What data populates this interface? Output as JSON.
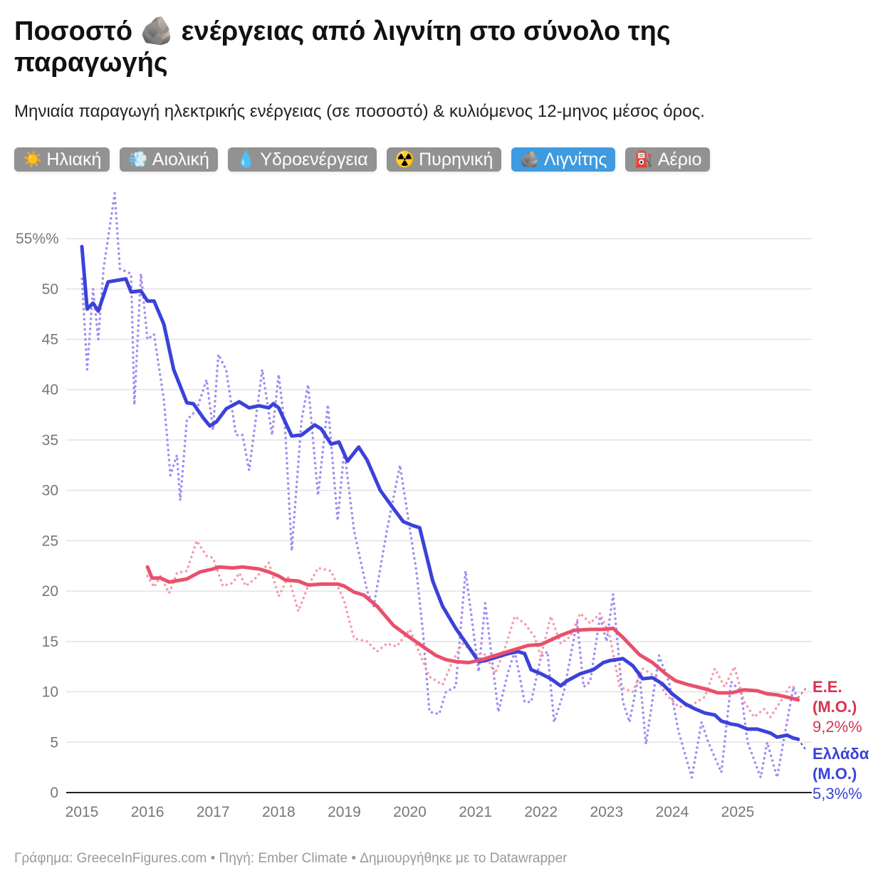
{
  "title": "Ποσοστό 🪨 ενέργειας από λιγνίτη στο σύνολο της παραγωγής",
  "subtitle": "Μηνιαία παραγωγή ηλεκτρικής ενέργειας (σε ποσοστό) & κυλιόμενος 12-μηνος μέσος όρος.",
  "buttons": [
    {
      "icon": "☀️",
      "label": "Ηλιακή",
      "active": false
    },
    {
      "icon": "💨",
      "label": "Αιολική",
      "active": false
    },
    {
      "icon": "💧",
      "label": "Υδροενέργεια",
      "active": false
    },
    {
      "icon": "☢️",
      "label": "Πυρηνική",
      "active": false
    },
    {
      "icon": "🪨",
      "label": "Λιγνίτης",
      "active": true
    },
    {
      "icon": "⛽",
      "label": "Αέριο",
      "active": false
    }
  ],
  "footer": "Γράφημα: GreeceInFigures.com • Πηγή: Ember Climate • Δημιουργήθηκε με το Datawrapper",
  "chart_data": {
    "type": "line",
    "ylim": [
      0,
      55
    ],
    "yticks": [
      0,
      5,
      10,
      15,
      20,
      25,
      30,
      35,
      40,
      45,
      50,
      55
    ],
    "ytick_labels": [
      "0",
      "5",
      "10",
      "15",
      "20",
      "25",
      "30",
      "35",
      "40",
      "45",
      "50",
      "55%%"
    ],
    "xticks": [
      "2015",
      "2016",
      "2017",
      "2018",
      "2019",
      "2020",
      "2021",
      "2022",
      "2023",
      "2024",
      "2025"
    ],
    "grid": true,
    "series": [
      {
        "name": "Ελλάδα (Μ.Ο.)",
        "label_lines": [
          "Ελλάδα",
          "(Μ.Ο.)"
        ],
        "end_label": "5,3%%",
        "color": "#3b42d9",
        "style": "solid",
        "points": [
          [
            2015.0,
            54.2
          ],
          [
            2015.08,
            48
          ],
          [
            2015.17,
            48.6
          ],
          [
            2015.25,
            47.8
          ],
          [
            2015.4,
            50.7
          ],
          [
            2015.67,
            51
          ],
          [
            2015.75,
            49.7
          ],
          [
            2015.9,
            49.8
          ],
          [
            2016.0,
            48.8
          ],
          [
            2016.1,
            48.8
          ],
          [
            2016.25,
            46.5
          ],
          [
            2016.4,
            42
          ],
          [
            2016.6,
            38.7
          ],
          [
            2016.7,
            38.6
          ],
          [
            2016.85,
            37.2
          ],
          [
            2016.95,
            36.4
          ],
          [
            2017.05,
            36.8
          ],
          [
            2017.2,
            38.1
          ],
          [
            2017.4,
            38.8
          ],
          [
            2017.55,
            38.2
          ],
          [
            2017.7,
            38.4
          ],
          [
            2017.85,
            38.2
          ],
          [
            2017.92,
            38.6
          ],
          [
            2018.0,
            38.2
          ],
          [
            2018.2,
            35.4
          ],
          [
            2018.35,
            35.5
          ],
          [
            2018.55,
            36.5
          ],
          [
            2018.65,
            36.1
          ],
          [
            2018.8,
            34.6
          ],
          [
            2018.92,
            34.8
          ],
          [
            2019.05,
            32.9
          ],
          [
            2019.22,
            34.3
          ],
          [
            2019.35,
            33
          ],
          [
            2019.55,
            30
          ],
          [
            2019.75,
            28.2
          ],
          [
            2019.9,
            26.9
          ],
          [
            2020.05,
            26.5
          ],
          [
            2020.15,
            26.3
          ],
          [
            2020.35,
            21
          ],
          [
            2020.5,
            18.5
          ],
          [
            2020.7,
            16.3
          ],
          [
            2020.85,
            14.9
          ],
          [
            2021.05,
            13
          ],
          [
            2021.15,
            13.1
          ],
          [
            2021.3,
            13.4
          ],
          [
            2021.5,
            13.8
          ],
          [
            2021.65,
            14
          ],
          [
            2021.75,
            13.8
          ],
          [
            2021.85,
            12.2
          ],
          [
            2022.0,
            11.8
          ],
          [
            2022.15,
            11.3
          ],
          [
            2022.3,
            10.6
          ],
          [
            2022.4,
            11.1
          ],
          [
            2022.6,
            11.8
          ],
          [
            2022.8,
            12.2
          ],
          [
            2022.95,
            12.9
          ],
          [
            2023.05,
            13.1
          ],
          [
            2023.25,
            13.3
          ],
          [
            2023.4,
            12.6
          ],
          [
            2023.55,
            11.3
          ],
          [
            2023.7,
            11.4
          ],
          [
            2023.85,
            10.8
          ],
          [
            2024.0,
            9.8
          ],
          [
            2024.2,
            8.8
          ],
          [
            2024.35,
            8.3
          ],
          [
            2024.5,
            7.9
          ],
          [
            2024.65,
            7.7
          ],
          [
            2024.75,
            7.1
          ],
          [
            2024.9,
            6.8
          ],
          [
            2025.0,
            6.7
          ],
          [
            2025.15,
            6.3
          ],
          [
            2025.3,
            6.3
          ],
          [
            2025.5,
            5.9
          ],
          [
            2025.6,
            5.5
          ],
          [
            2025.75,
            5.7
          ],
          [
            2025.85,
            5.4
          ],
          [
            2025.92,
            5.3
          ]
        ]
      },
      {
        "name": "Ελλάδα (μηνιαία)",
        "color": "#a08cf2",
        "style": "dotted",
        "points": [
          [
            2015.0,
            51
          ],
          [
            2015.08,
            42
          ],
          [
            2015.17,
            50
          ],
          [
            2015.25,
            45
          ],
          [
            2015.33,
            52
          ],
          [
            2015.5,
            59.5
          ],
          [
            2015.58,
            52
          ],
          [
            2015.75,
            51.5
          ],
          [
            2015.8,
            38.5
          ],
          [
            2015.9,
            51.5
          ],
          [
            2016.0,
            45
          ],
          [
            2016.1,
            45.5
          ],
          [
            2016.25,
            39
          ],
          [
            2016.35,
            31.5
          ],
          [
            2016.45,
            33.5
          ],
          [
            2016.5,
            29
          ],
          [
            2016.6,
            37
          ],
          [
            2016.75,
            38
          ],
          [
            2016.9,
            41
          ],
          [
            2017.0,
            36
          ],
          [
            2017.08,
            43.5
          ],
          [
            2017.2,
            42
          ],
          [
            2017.35,
            35.5
          ],
          [
            2017.45,
            35.5
          ],
          [
            2017.55,
            32
          ],
          [
            2017.75,
            42
          ],
          [
            2017.9,
            35.5
          ],
          [
            2018.0,
            41.5
          ],
          [
            2018.1,
            36
          ],
          [
            2018.2,
            24
          ],
          [
            2018.35,
            37
          ],
          [
            2018.45,
            40.5
          ],
          [
            2018.6,
            29.5
          ],
          [
            2018.75,
            38.5
          ],
          [
            2018.9,
            27
          ],
          [
            2019.0,
            34
          ],
          [
            2019.15,
            26
          ],
          [
            2019.35,
            20
          ],
          [
            2019.45,
            18.5
          ],
          [
            2019.65,
            26
          ],
          [
            2019.85,
            32.5
          ],
          [
            2020.1,
            22
          ],
          [
            2020.2,
            16
          ],
          [
            2020.3,
            8
          ],
          [
            2020.45,
            7.8
          ],
          [
            2020.55,
            10
          ],
          [
            2020.7,
            10.5
          ],
          [
            2020.85,
            22
          ],
          [
            2021.05,
            12
          ],
          [
            2021.15,
            18.8
          ],
          [
            2021.35,
            8
          ],
          [
            2021.5,
            12
          ],
          [
            2021.6,
            14
          ],
          [
            2021.75,
            9
          ],
          [
            2021.85,
            9
          ],
          [
            2022.0,
            13.5
          ],
          [
            2022.1,
            14
          ],
          [
            2022.2,
            7
          ],
          [
            2022.35,
            10
          ],
          [
            2022.55,
            17
          ],
          [
            2022.65,
            10.5
          ],
          [
            2022.75,
            11
          ],
          [
            2022.9,
            17.5
          ],
          [
            2023.0,
            15
          ],
          [
            2023.1,
            19.7
          ],
          [
            2023.25,
            9
          ],
          [
            2023.35,
            7
          ],
          [
            2023.5,
            12
          ],
          [
            2023.6,
            4.8
          ],
          [
            2023.8,
            13.6
          ],
          [
            2023.95,
            11
          ],
          [
            2024.1,
            6
          ],
          [
            2024.3,
            1.5
          ],
          [
            2024.45,
            7
          ],
          [
            2024.55,
            5
          ],
          [
            2024.75,
            2
          ],
          [
            2024.9,
            11
          ],
          [
            2025.05,
            10
          ],
          [
            2025.15,
            5
          ],
          [
            2025.35,
            1.5
          ],
          [
            2025.45,
            5
          ],
          [
            2025.6,
            1.5
          ],
          [
            2025.75,
            7
          ],
          [
            2025.85,
            10.5
          ],
          [
            2025.92,
            9
          ]
        ]
      },
      {
        "name": "Ε.Ε. (Μ.Ο.)",
        "label_lines": [
          "Ε.Ε.",
          "(Μ.Ο.)"
        ],
        "end_label": "9,2%%",
        "color": "#e9506b",
        "style": "solid",
        "points": [
          [
            2016.0,
            22.4
          ],
          [
            2016.07,
            21.3
          ],
          [
            2016.2,
            21.3
          ],
          [
            2016.33,
            20.9
          ],
          [
            2016.6,
            21.2
          ],
          [
            2016.8,
            21.9
          ],
          [
            2017.0,
            22.2
          ],
          [
            2017.1,
            22.4
          ],
          [
            2017.3,
            22.3
          ],
          [
            2017.45,
            22.4
          ],
          [
            2017.7,
            22.2
          ],
          [
            2017.85,
            21.9
          ],
          [
            2018.0,
            21.5
          ],
          [
            2018.1,
            21.1
          ],
          [
            2018.3,
            21
          ],
          [
            2018.45,
            20.6
          ],
          [
            2018.65,
            20.7
          ],
          [
            2018.9,
            20.7
          ],
          [
            2019.0,
            20.5
          ],
          [
            2019.15,
            19.9
          ],
          [
            2019.3,
            19.6
          ],
          [
            2019.5,
            18.5
          ],
          [
            2019.75,
            16.6
          ],
          [
            2020.0,
            15.4
          ],
          [
            2020.2,
            14.5
          ],
          [
            2020.4,
            13.6
          ],
          [
            2020.55,
            13.2
          ],
          [
            2020.7,
            13
          ],
          [
            2020.9,
            12.9
          ],
          [
            2021.1,
            13.2
          ],
          [
            2021.35,
            13.7
          ],
          [
            2021.6,
            14.2
          ],
          [
            2021.8,
            14.6
          ],
          [
            2022.0,
            14.7
          ],
          [
            2022.1,
            15
          ],
          [
            2022.3,
            15.6
          ],
          [
            2022.5,
            16.1
          ],
          [
            2022.75,
            16.2
          ],
          [
            2022.95,
            16.2
          ],
          [
            2023.1,
            16.3
          ],
          [
            2023.25,
            15.4
          ],
          [
            2023.5,
            13.7
          ],
          [
            2023.7,
            12.9
          ],
          [
            2023.9,
            11.8
          ],
          [
            2024.05,
            11.1
          ],
          [
            2024.25,
            10.7
          ],
          [
            2024.5,
            10.3
          ],
          [
            2024.7,
            9.9
          ],
          [
            2024.9,
            9.9
          ],
          [
            2025.1,
            10.2
          ],
          [
            2025.3,
            10.1
          ],
          [
            2025.45,
            9.8
          ],
          [
            2025.6,
            9.7
          ],
          [
            2025.8,
            9.4
          ],
          [
            2025.92,
            9.2
          ]
        ]
      },
      {
        "name": "Ε.Ε. (μηνιαία)",
        "color": "#f79aab",
        "style": "dotted",
        "points": [
          [
            2016.0,
            21.5
          ],
          [
            2016.1,
            20.4
          ],
          [
            2016.2,
            21.5
          ],
          [
            2016.33,
            19.8
          ],
          [
            2016.45,
            21.8
          ],
          [
            2016.6,
            22
          ],
          [
            2016.75,
            25
          ],
          [
            2016.9,
            23.5
          ],
          [
            2017.0,
            23.3
          ],
          [
            2017.15,
            20.5
          ],
          [
            2017.3,
            20.8
          ],
          [
            2017.4,
            21.8
          ],
          [
            2017.5,
            20.5
          ],
          [
            2017.65,
            21.3
          ],
          [
            2017.85,
            22.8
          ],
          [
            2018.0,
            19.5
          ],
          [
            2018.15,
            21.4
          ],
          [
            2018.3,
            18
          ],
          [
            2018.45,
            20.5
          ],
          [
            2018.6,
            22.3
          ],
          [
            2018.8,
            22
          ],
          [
            2019.0,
            19
          ],
          [
            2019.15,
            15.3
          ],
          [
            2019.35,
            15
          ],
          [
            2019.5,
            14
          ],
          [
            2019.65,
            14.8
          ],
          [
            2019.8,
            14.5
          ],
          [
            2020.0,
            16.2
          ],
          [
            2020.1,
            14.6
          ],
          [
            2020.3,
            11.5
          ],
          [
            2020.5,
            10.7
          ],
          [
            2020.65,
            13
          ],
          [
            2020.8,
            14.8
          ],
          [
            2021.0,
            13.8
          ],
          [
            2021.15,
            13.7
          ],
          [
            2021.3,
            11.8
          ],
          [
            2021.45,
            14.3
          ],
          [
            2021.6,
            17.5
          ],
          [
            2021.75,
            16.8
          ],
          [
            2021.9,
            15.5
          ],
          [
            2022.0,
            13.5
          ],
          [
            2022.15,
            17.5
          ],
          [
            2022.3,
            14.8
          ],
          [
            2022.45,
            15.5
          ],
          [
            2022.6,
            17.8
          ],
          [
            2022.75,
            16.8
          ],
          [
            2022.9,
            17.8
          ],
          [
            2023.05,
            15.5
          ],
          [
            2023.2,
            10.5
          ],
          [
            2023.4,
            10
          ],
          [
            2023.55,
            12.3
          ],
          [
            2023.75,
            11.5
          ],
          [
            2023.9,
            9.8
          ],
          [
            2024.1,
            8.5
          ],
          [
            2024.3,
            8.7
          ],
          [
            2024.5,
            9.5
          ],
          [
            2024.65,
            12.3
          ],
          [
            2024.8,
            10.5
          ],
          [
            2024.95,
            12.5
          ],
          [
            2025.1,
            9
          ],
          [
            2025.25,
            7.5
          ],
          [
            2025.4,
            8.3
          ],
          [
            2025.5,
            7.5
          ],
          [
            2025.65,
            9
          ],
          [
            2025.8,
            10.6
          ],
          [
            2025.92,
            10.3
          ]
        ]
      }
    ]
  }
}
